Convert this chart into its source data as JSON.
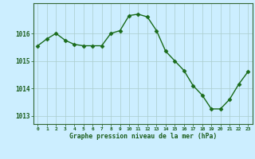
{
  "x": [
    0,
    1,
    2,
    3,
    4,
    5,
    6,
    7,
    8,
    9,
    10,
    11,
    12,
    13,
    14,
    15,
    16,
    17,
    18,
    19,
    20,
    21,
    22,
    23
  ],
  "y": [
    1015.55,
    1015.8,
    1016.0,
    1015.75,
    1015.6,
    1015.55,
    1015.55,
    1015.55,
    1016.0,
    1016.1,
    1016.65,
    1016.7,
    1016.6,
    1016.1,
    1015.35,
    1015.0,
    1014.65,
    1014.1,
    1013.75,
    1013.25,
    1013.25,
    1013.6,
    1014.15,
    1014.6
  ],
  "line_color": "#1a6b1a",
  "marker": "D",
  "marker_size": 2.5,
  "background_color": "#cceeff",
  "grid_color": "#aacccc",
  "xlabel": "Graphe pression niveau de la mer (hPa)",
  "xlabel_color": "#1a5c1a",
  "tick_color": "#1a5c1a",
  "label_bg_color": "#336633",
  "yticks": [
    1013,
    1014,
    1015,
    1016
  ],
  "ylim": [
    1012.7,
    1017.1
  ],
  "xlim": [
    -0.5,
    23.5
  ],
  "xticks": [
    0,
    1,
    2,
    3,
    4,
    5,
    6,
    7,
    8,
    9,
    10,
    11,
    12,
    13,
    14,
    15,
    16,
    17,
    18,
    19,
    20,
    21,
    22,
    23
  ]
}
